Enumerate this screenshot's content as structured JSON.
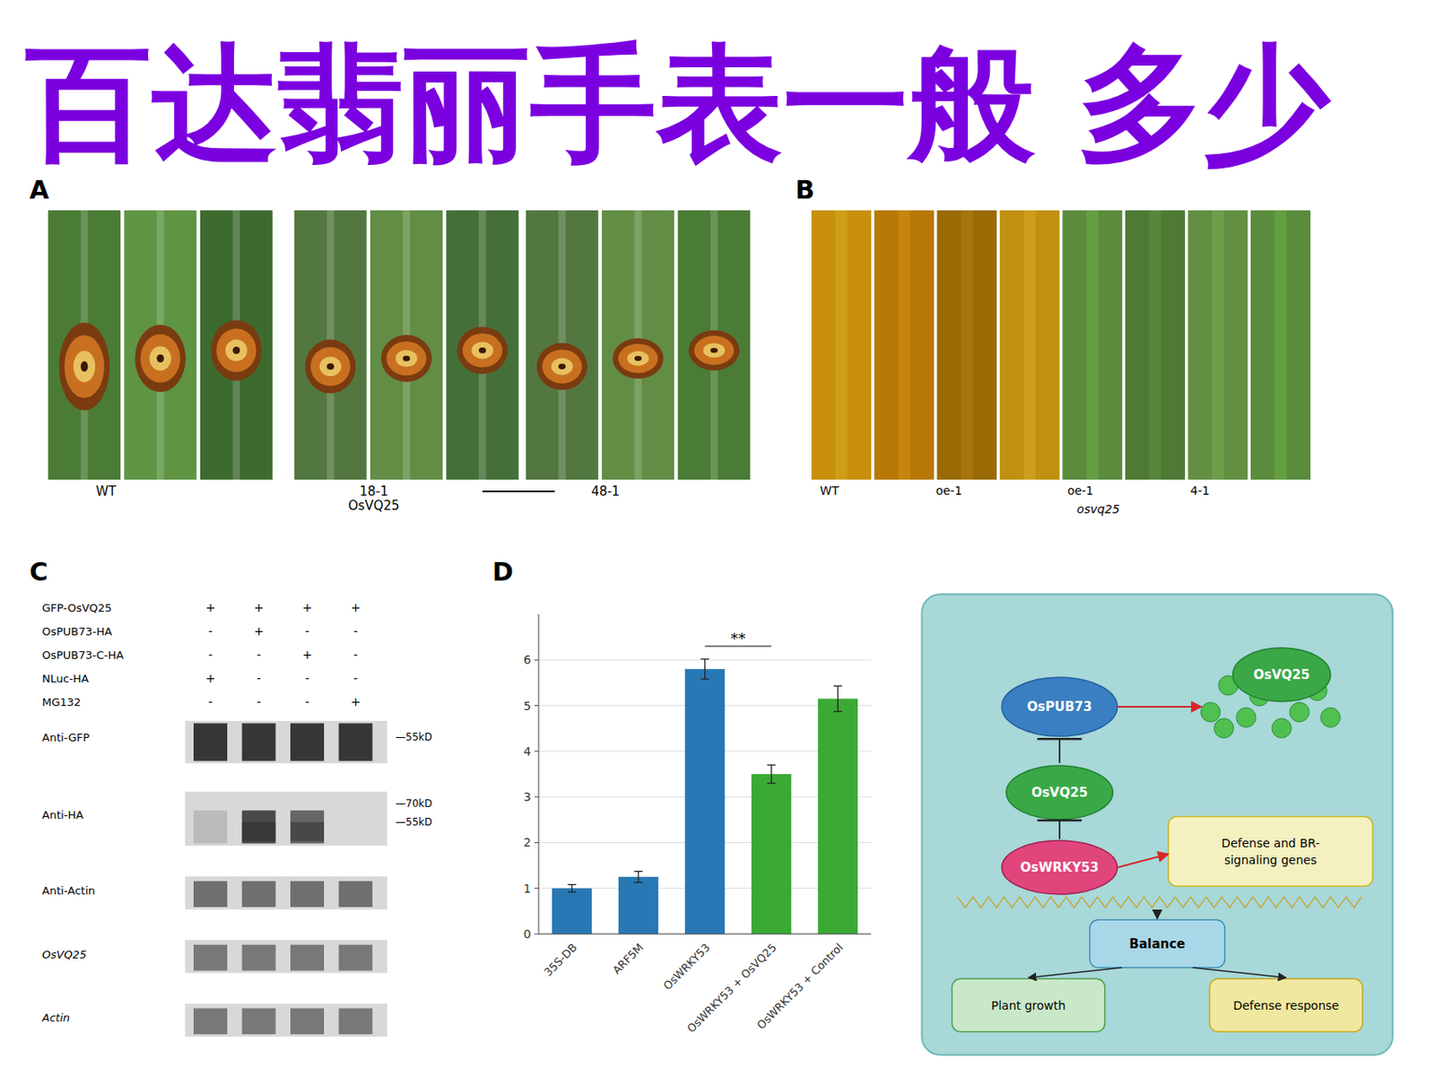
{
  "chart_data": [
    {
      "type": "watermark",
      "annotations": [
        "百达翡丽手表一般",
        "多少"
      ],
      "color": "#7B00E0"
    },
    {
      "type": "photo",
      "title": "A",
      "annotations": [
        "WT",
        "18-1\nOsVQ25",
        "48-1"
      ]
    },
    {
      "type": "photo",
      "title": "B",
      "annotations": [
        "WT",
        "oe-1",
        "oe-1",
        "4-1",
        "osvq25"
      ]
    },
    {
      "type": "blot",
      "title": "C",
      "categories": [
        "GFP-OsVQ25",
        "OsPUB73-HA",
        "OsPUB73-C-HA",
        "NLuc-HA",
        "MG132"
      ],
      "signs": [
        [
          "+",
          "+",
          "+",
          "+"
        ],
        [
          "-",
          "+",
          "-",
          "-"
        ],
        [
          "-",
          "-",
          "+",
          "-"
        ],
        [
          "+",
          "-",
          "-",
          "-"
        ],
        [
          "-",
          "-",
          "-",
          "+"
        ]
      ],
      "annotations": [
        "Anti-GFP",
        "—55kD",
        "Anti-HA",
        "—70kD",
        "—55kD",
        "Anti-Actin",
        "OsVQ25",
        "Actin"
      ]
    },
    {
      "type": "bar",
      "title": "D",
      "categories": [
        "35S-DB",
        "ARF5M",
        "OsWRKY53",
        "OsWRKY53 + OsVQ25",
        "OsWRKY53 + Control"
      ],
      "values": [
        1.0,
        1.25,
        5.8,
        3.5,
        5.15
      ],
      "errors": [
        0.08,
        0.12,
        0.22,
        0.2,
        0.28
      ],
      "colors": [
        "#2878b5",
        "#2878b5",
        "#2878b5",
        "#3aaa35",
        "#3aaa35"
      ],
      "ylim": [
        0,
        7
      ],
      "yticks": [
        0,
        1,
        2,
        3,
        4,
        5,
        6
      ],
      "grid": true,
      "annotations": [
        {
          "text": "**",
          "from": "OsWRKY53",
          "to": "OsWRKY53 + OsVQ25",
          "y": 6.3
        }
      ]
    },
    {
      "type": "diagram",
      "color": "#a8d8d8",
      "categories": [
        "OsPUB73",
        "OsVQ25",
        "OsVQ25",
        "OsWRKY53",
        "Defense and BR-\nsignaling genes",
        "Balance",
        "Plant growth",
        "Defense response"
      ],
      "colors": [
        "#3a7fc1",
        "#3aa846",
        "#3aa846",
        "#e0457b",
        "#f5f0c0",
        "#a8d8e8",
        "#c8e8c8",
        "#f0e8a0"
      ]
    }
  ]
}
